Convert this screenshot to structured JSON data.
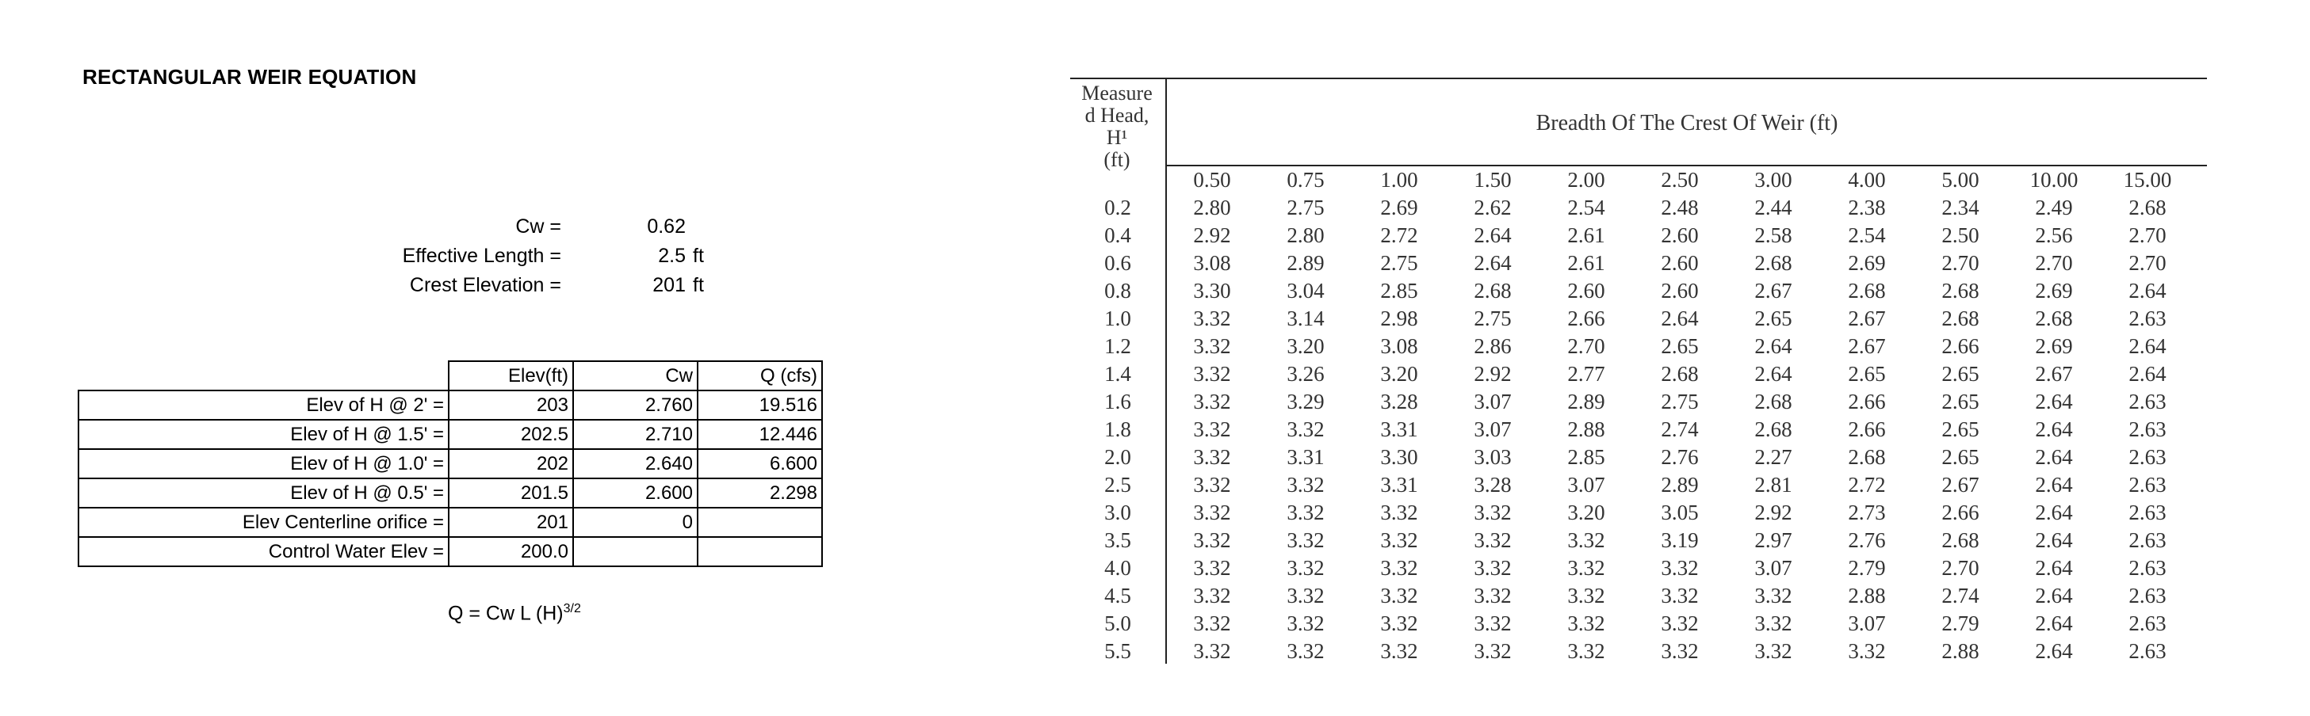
{
  "title": "RECTANGULAR WEIR EQUATION",
  "params": [
    {
      "label": "Cw =",
      "value": "0.62",
      "unit": ""
    },
    {
      "label": "Effective Length =",
      "value": "2.5",
      "unit": "ft"
    },
    {
      "label": "Crest Elevation =",
      "value": "201",
      "unit": "ft"
    }
  ],
  "calc_table": {
    "headers": [
      "Elev(ft)",
      "Cw",
      "Q (cfs)"
    ],
    "rows": [
      {
        "label": "Elev of H @ 2' =",
        "elev": "203",
        "cw": "2.760",
        "q": "19.516"
      },
      {
        "label": "Elev of H @ 1.5' =",
        "elev": "202.5",
        "cw": "2.710",
        "q": "12.446"
      },
      {
        "label": "Elev of H @ 1.0' =",
        "elev": "202",
        "cw": "2.640",
        "q": "6.600"
      },
      {
        "label": "Elev of H @ 0.5' =",
        "elev": "201.5",
        "cw": "2.600",
        "q": "2.298"
      },
      {
        "label": "Elev Centerline orifice =",
        "elev": "201",
        "cw": "0",
        "q": ""
      },
      {
        "label": "Control Water Elev =",
        "elev": "200.0",
        "cw": "",
        "q": ""
      }
    ]
  },
  "formula": {
    "main": "Q = Cw L (H)",
    "exponent": "3/2"
  },
  "ref_table": {
    "head_label_lines": [
      "Measure",
      "d  Head,",
      "H¹",
      "(ft)"
    ],
    "breadth_title": "Breadth Of The Crest Of Weir (ft)",
    "breadths": [
      "0.50",
      "0.75",
      "1.00",
      "1.50",
      "2.00",
      "2.50",
      "3.00",
      "4.00",
      "5.00",
      "10.00",
      "15.00"
    ],
    "rows": [
      {
        "h": "0.2",
        "v": [
          "2.80",
          "2.75",
          "2.69",
          "2.62",
          "2.54",
          "2.48",
          "2.44",
          "2.38",
          "2.34",
          "2.49",
          "2.68"
        ]
      },
      {
        "h": "0.4",
        "v": [
          "2.92",
          "2.80",
          "2.72",
          "2.64",
          "2.61",
          "2.60",
          "2.58",
          "2.54",
          "2.50",
          "2.56",
          "2.70"
        ]
      },
      {
        "h": "0.6",
        "v": [
          "3.08",
          "2.89",
          "2.75",
          "2.64",
          "2.61",
          "2.60",
          "2.68",
          "2.69",
          "2.70",
          "2.70",
          "2.70"
        ]
      },
      {
        "h": "0.8",
        "v": [
          "3.30",
          "3.04",
          "2.85",
          "2.68",
          "2.60",
          "2.60",
          "2.67",
          "2.68",
          "2.68",
          "2.69",
          "2.64"
        ]
      },
      {
        "h": "1.0",
        "v": [
          "3.32",
          "3.14",
          "2.98",
          "2.75",
          "2.66",
          "2.64",
          "2.65",
          "2.67",
          "2.68",
          "2.68",
          "2.63"
        ]
      },
      {
        "h": "1.2",
        "v": [
          "3.32",
          "3.20",
          "3.08",
          "2.86",
          "2.70",
          "2.65",
          "2.64",
          "2.67",
          "2.66",
          "2.69",
          "2.64"
        ]
      },
      {
        "h": "1.4",
        "v": [
          "3.32",
          "3.26",
          "3.20",
          "2.92",
          "2.77",
          "2.68",
          "2.64",
          "2.65",
          "2.65",
          "2.67",
          "2.64"
        ]
      },
      {
        "h": "1.6",
        "v": [
          "3.32",
          "3.29",
          "3.28",
          "3.07",
          "2.89",
          "2.75",
          "2.68",
          "2.66",
          "2.65",
          "2.64",
          "2.63"
        ]
      },
      {
        "h": "1.8",
        "v": [
          "3.32",
          "3.32",
          "3.31",
          "3.07",
          "2.88",
          "2.74",
          "2.68",
          "2.66",
          "2.65",
          "2.64",
          "2.63"
        ]
      },
      {
        "h": "2.0",
        "v": [
          "3.32",
          "3.31",
          "3.30",
          "3.03",
          "2.85",
          "2.76",
          "2.27",
          "2.68",
          "2.65",
          "2.64",
          "2.63"
        ]
      },
      {
        "h": "2.5",
        "v": [
          "3.32",
          "3.32",
          "3.31",
          "3.28",
          "3.07",
          "2.89",
          "2.81",
          "2.72",
          "2.67",
          "2.64",
          "2.63"
        ]
      },
      {
        "h": "3.0",
        "v": [
          "3.32",
          "3.32",
          "3.32",
          "3.32",
          "3.20",
          "3.05",
          "2.92",
          "2.73",
          "2.66",
          "2.64",
          "2.63"
        ]
      },
      {
        "h": "3.5",
        "v": [
          "3.32",
          "3.32",
          "3.32",
          "3.32",
          "3.32",
          "3.19",
          "2.97",
          "2.76",
          "2.68",
          "2.64",
          "2.63"
        ]
      },
      {
        "h": "4.0",
        "v": [
          "3.32",
          "3.32",
          "3.32",
          "3.32",
          "3.32",
          "3.32",
          "3.07",
          "2.79",
          "2.70",
          "2.64",
          "2.63"
        ]
      },
      {
        "h": "4.5",
        "v": [
          "3.32",
          "3.32",
          "3.32",
          "3.32",
          "3.32",
          "3.32",
          "3.32",
          "2.88",
          "2.74",
          "2.64",
          "2.63"
        ]
      },
      {
        "h": "5.0",
        "v": [
          "3.32",
          "3.32",
          "3.32",
          "3.32",
          "3.32",
          "3.32",
          "3.32",
          "3.07",
          "2.79",
          "2.64",
          "2.63"
        ]
      },
      {
        "h": "5.5",
        "v": [
          "3.32",
          "3.32",
          "3.32",
          "3.32",
          "3.32",
          "3.32",
          "3.32",
          "3.32",
          "2.88",
          "2.64",
          "2.63"
        ]
      }
    ]
  }
}
